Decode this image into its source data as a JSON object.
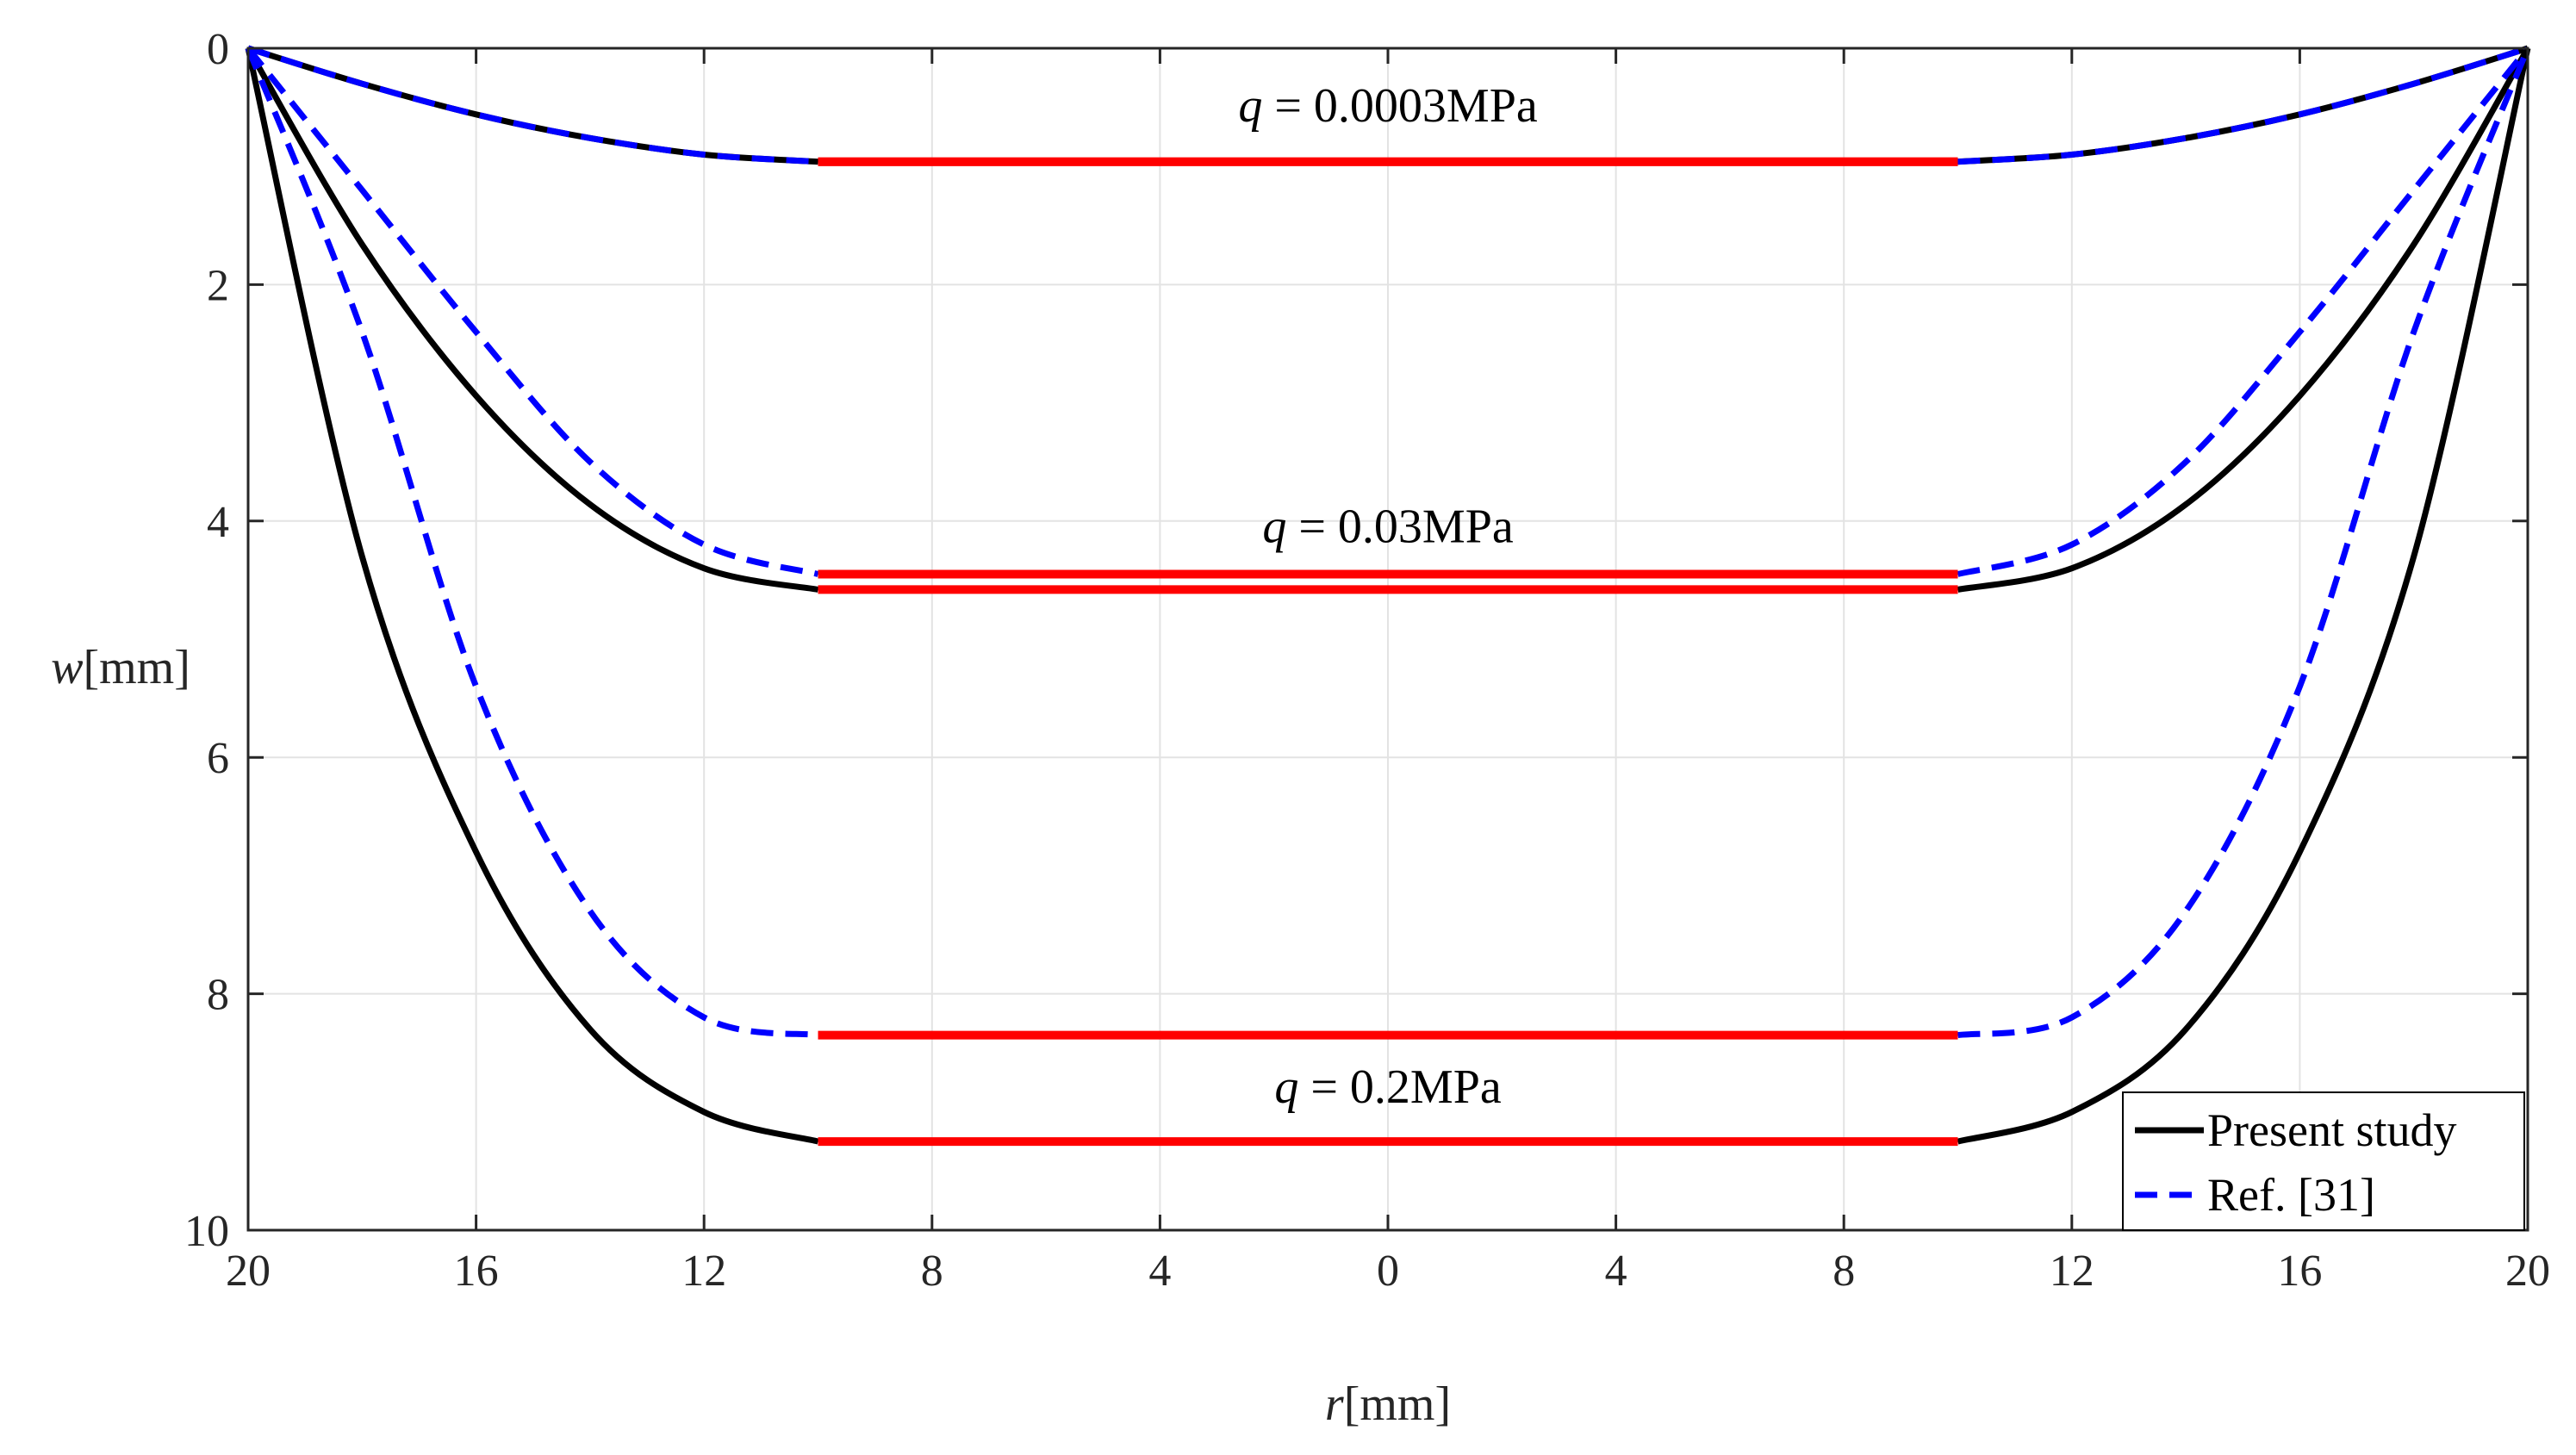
{
  "chart_data": {
    "type": "line",
    "title": "",
    "xlabel": {
      "var": "r",
      "unit": "[mm]"
    },
    "ylabel": {
      "var": "w",
      "unit": "[mm]"
    },
    "xlim": [
      -20,
      20
    ],
    "ylim": [
      0,
      10
    ],
    "y_reversed": true,
    "grid": true,
    "x_tick_values": [
      -20,
      -16,
      -12,
      -8,
      -4,
      0,
      4,
      8,
      12,
      16,
      20
    ],
    "x_tick_labels": [
      "20",
      "16",
      "12",
      "8",
      "4",
      "0",
      "4",
      "8",
      "12",
      "16",
      "20"
    ],
    "y_tick_values": [
      0,
      2,
      4,
      6,
      8,
      10
    ],
    "y_tick_labels": [
      "0",
      "2",
      "4",
      "6",
      "8",
      "10"
    ],
    "punch_radius_mm": 10,
    "legend": {
      "placement": "bottom-right",
      "entries": [
        {
          "label": "Present study",
          "color": "#000000",
          "dash": "solid"
        },
        {
          "label": "Ref. [31]",
          "color": "#0000ff",
          "dash": "dashed"
        }
      ]
    },
    "flat_region_color": "#ff0000",
    "series": [
      {
        "name": "Present study",
        "load": "q = 0.0003MPa",
        "color": "#000000",
        "dash": "solid",
        "r": [
          -20,
          -18,
          -16,
          -14,
          -12,
          -10
        ],
        "w": [
          0,
          0.3,
          0.56,
          0.76,
          0.9,
          0.96
        ]
      },
      {
        "name": "Ref. [31]",
        "load": "q = 0.0003MPa",
        "color": "#0000ff",
        "dash": "dashed",
        "r": [
          -20,
          -18,
          -16,
          -14,
          -12,
          -10
        ],
        "w": [
          0,
          0.3,
          0.56,
          0.76,
          0.9,
          0.96
        ]
      },
      {
        "name": "Present study",
        "load": "q = 0.03MPa",
        "color": "#000000",
        "dash": "solid",
        "r": [
          -20,
          -18,
          -16,
          -14,
          -12,
          -10
        ],
        "w": [
          0,
          1.66,
          2.94,
          3.86,
          4.4,
          4.58
        ]
      },
      {
        "name": "Ref. [31]",
        "load": "q = 0.03MPa",
        "color": "#0000ff",
        "dash": "dashed",
        "r": [
          -20,
          -18,
          -16,
          -14,
          -12,
          -10
        ],
        "w": [
          0,
          1.2,
          2.4,
          3.5,
          4.2,
          4.45
        ]
      },
      {
        "name": "Present study",
        "load": "q = 0.2MPa",
        "color": "#000000",
        "dash": "solid",
        "r": [
          -20,
          -18,
          -16,
          -14,
          -12,
          -10
        ],
        "w": [
          0,
          4.3,
          6.8,
          8.3,
          9.0,
          9.25
        ]
      },
      {
        "name": "Ref. [31]",
        "load": "q = 0.2MPa",
        "color": "#0000ff",
        "dash": "dashed",
        "r": [
          -20,
          -18,
          -16,
          -14,
          -12,
          -10
        ],
        "w": [
          0,
          2.4,
          5.4,
          7.3,
          8.2,
          8.35
        ]
      }
    ],
    "annotations": [
      {
        "var": "q",
        "text": " = 0.0003MPa",
        "r": 0,
        "w": 0.62
      },
      {
        "var": "q",
        "text": " = 0.03MPa",
        "r": 0,
        "w": 4.18
      },
      {
        "var": "q",
        "text": " = 0.2MPa",
        "r": 0,
        "w": 8.92
      }
    ]
  }
}
